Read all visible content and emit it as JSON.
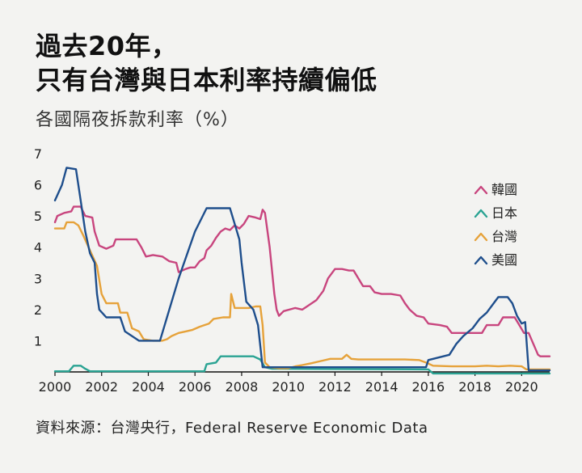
{
  "header": {
    "title_line1": "過去20年，",
    "title_line2": "只有台灣與日本利率持續偏低",
    "subtitle": "各國隔夜拆款利率（%）"
  },
  "footer": {
    "source": "資料來源：台灣央行，Federal Reserve Economic Data"
  },
  "chart_data": {
    "type": "line",
    "title": "過去20年，只有台灣與日本利率持續偏低",
    "subtitle": "各國隔夜拆款利率（%）",
    "xlabel": "",
    "ylabel": "",
    "xlim": [
      2000,
      2021.2
    ],
    "ylim": [
      0,
      7
    ],
    "x_ticks": [
      "2000",
      "2002",
      "2004",
      "2006",
      "2008",
      "2010",
      "2012",
      "2014",
      "2016",
      "2018",
      "2020"
    ],
    "y_ticks": [
      "1",
      "2",
      "3",
      "4",
      "5",
      "6",
      "7"
    ],
    "grid": false,
    "legend_position": "right",
    "series": [
      {
        "name": "韓國",
        "color": "#c8457e",
        "points": [
          [
            2000,
            4.8
          ],
          [
            2000.1,
            5.0
          ],
          [
            2000.4,
            5.1
          ],
          [
            2000.7,
            5.15
          ],
          [
            2000.8,
            5.3
          ],
          [
            2001.1,
            5.3
          ],
          [
            2001.3,
            5.0
          ],
          [
            2001.6,
            4.95
          ],
          [
            2001.7,
            4.5
          ],
          [
            2001.9,
            4.05
          ],
          [
            2002.2,
            3.95
          ],
          [
            2002.5,
            4.05
          ],
          [
            2002.6,
            4.25
          ],
          [
            2003.5,
            4.25
          ],
          [
            2003.7,
            4.0
          ],
          [
            2003.9,
            3.7
          ],
          [
            2004.2,
            3.75
          ],
          [
            2004.6,
            3.7
          ],
          [
            2004.9,
            3.55
          ],
          [
            2005.2,
            3.5
          ],
          [
            2005.3,
            3.2
          ],
          [
            2005.6,
            3.3
          ],
          [
            2005.8,
            3.35
          ],
          [
            2006.0,
            3.35
          ],
          [
            2006.2,
            3.55
          ],
          [
            2006.4,
            3.65
          ],
          [
            2006.5,
            3.9
          ],
          [
            2006.7,
            4.05
          ],
          [
            2006.9,
            4.3
          ],
          [
            2007.1,
            4.5
          ],
          [
            2007.3,
            4.6
          ],
          [
            2007.5,
            4.55
          ],
          [
            2007.7,
            4.7
          ],
          [
            2007.9,
            4.6
          ],
          [
            2008.1,
            4.75
          ],
          [
            2008.3,
            5.0
          ],
          [
            2008.6,
            4.95
          ],
          [
            2008.8,
            4.9
          ],
          [
            2008.9,
            5.2
          ],
          [
            2009.0,
            5.1
          ],
          [
            2009.2,
            4.0
          ],
          [
            2009.4,
            2.5
          ],
          [
            2009.5,
            2.0
          ],
          [
            2009.6,
            1.8
          ],
          [
            2009.8,
            1.95
          ],
          [
            2010.3,
            2.05
          ],
          [
            2010.6,
            2.0
          ],
          [
            2010.8,
            2.1
          ],
          [
            2011.2,
            2.3
          ],
          [
            2011.5,
            2.6
          ],
          [
            2011.7,
            3.0
          ],
          [
            2012.0,
            3.3
          ],
          [
            2012.3,
            3.3
          ],
          [
            2012.6,
            3.25
          ],
          [
            2012.8,
            3.25
          ],
          [
            2013.0,
            3.0
          ],
          [
            2013.2,
            2.75
          ],
          [
            2013.5,
            2.75
          ],
          [
            2013.7,
            2.55
          ],
          [
            2014.0,
            2.5
          ],
          [
            2014.4,
            2.5
          ],
          [
            2014.8,
            2.45
          ],
          [
            2015.0,
            2.2
          ],
          [
            2015.2,
            2.0
          ],
          [
            2015.5,
            1.8
          ],
          [
            2015.8,
            1.75
          ],
          [
            2016.0,
            1.55
          ],
          [
            2016.5,
            1.5
          ],
          [
            2016.8,
            1.45
          ],
          [
            2017.0,
            1.25
          ],
          [
            2017.5,
            1.25
          ],
          [
            2018.0,
            1.25
          ],
          [
            2018.3,
            1.25
          ],
          [
            2018.5,
            1.5
          ],
          [
            2018.8,
            1.5
          ],
          [
            2019.0,
            1.5
          ],
          [
            2019.2,
            1.75
          ],
          [
            2019.5,
            1.75
          ],
          [
            2019.7,
            1.75
          ],
          [
            2019.9,
            1.5
          ],
          [
            2020.1,
            1.25
          ],
          [
            2020.3,
            1.25
          ],
          [
            2020.5,
            0.9
          ],
          [
            2020.7,
            0.55
          ],
          [
            2020.8,
            0.5
          ],
          [
            2021.2,
            0.5
          ]
        ]
      },
      {
        "name": "日本",
        "color": "#2aa393",
        "points": [
          [
            2000,
            0.02
          ],
          [
            2000.6,
            0.02
          ],
          [
            2000.8,
            0.2
          ],
          [
            2001.1,
            0.2
          ],
          [
            2001.3,
            0.1
          ],
          [
            2001.5,
            0.02
          ],
          [
            2006.4,
            0.02
          ],
          [
            2006.5,
            0.25
          ],
          [
            2006.9,
            0.3
          ],
          [
            2007.1,
            0.5
          ],
          [
            2008.5,
            0.5
          ],
          [
            2008.8,
            0.4
          ],
          [
            2009.0,
            0.15
          ],
          [
            2009.3,
            0.1
          ],
          [
            2016.0,
            0.08
          ],
          [
            2016.2,
            -0.05
          ],
          [
            2021.2,
            -0.05
          ]
        ]
      },
      {
        "name": "台灣",
        "color": "#e6a23a",
        "points": [
          [
            2000,
            4.6
          ],
          [
            2000.4,
            4.6
          ],
          [
            2000.5,
            4.8
          ],
          [
            2000.8,
            4.8
          ],
          [
            2001.0,
            4.7
          ],
          [
            2001.2,
            4.4
          ],
          [
            2001.5,
            3.9
          ],
          [
            2001.8,
            3.4
          ],
          [
            2002.0,
            2.5
          ],
          [
            2002.2,
            2.2
          ],
          [
            2002.7,
            2.2
          ],
          [
            2002.8,
            1.9
          ],
          [
            2003.1,
            1.9
          ],
          [
            2003.3,
            1.4
          ],
          [
            2003.6,
            1.3
          ],
          [
            2003.8,
            1.05
          ],
          [
            2004.2,
            1.0
          ],
          [
            2004.6,
            1.0
          ],
          [
            2004.8,
            1.05
          ],
          [
            2005.0,
            1.15
          ],
          [
            2005.3,
            1.25
          ],
          [
            2005.6,
            1.3
          ],
          [
            2005.9,
            1.35
          ],
          [
            2006.2,
            1.45
          ],
          [
            2006.6,
            1.55
          ],
          [
            2006.8,
            1.7
          ],
          [
            2007.2,
            1.75
          ],
          [
            2007.5,
            1.75
          ],
          [
            2007.55,
            2.5
          ],
          [
            2007.7,
            2.05
          ],
          [
            2008.0,
            2.05
          ],
          [
            2008.3,
            2.05
          ],
          [
            2008.6,
            2.1
          ],
          [
            2008.8,
            2.1
          ],
          [
            2008.9,
            1.5
          ],
          [
            2009.0,
            0.3
          ],
          [
            2009.2,
            0.15
          ],
          [
            2009.6,
            0.12
          ],
          [
            2010.0,
            0.12
          ],
          [
            2010.3,
            0.18
          ],
          [
            2010.6,
            0.22
          ],
          [
            2011.0,
            0.28
          ],
          [
            2011.4,
            0.35
          ],
          [
            2011.8,
            0.42
          ],
          [
            2012.3,
            0.42
          ],
          [
            2012.5,
            0.55
          ],
          [
            2012.7,
            0.42
          ],
          [
            2013.0,
            0.4
          ],
          [
            2014.0,
            0.4
          ],
          [
            2015.0,
            0.4
          ],
          [
            2015.6,
            0.38
          ],
          [
            2015.9,
            0.3
          ],
          [
            2016.2,
            0.2
          ],
          [
            2017.0,
            0.18
          ],
          [
            2018.0,
            0.18
          ],
          [
            2018.5,
            0.2
          ],
          [
            2019.0,
            0.18
          ],
          [
            2019.5,
            0.2
          ],
          [
            2020.0,
            0.18
          ],
          [
            2020.2,
            0.08
          ],
          [
            2020.4,
            0.08
          ],
          [
            2021.2,
            0.08
          ]
        ]
      },
      {
        "name": "美國",
        "color": "#1e4e8c",
        "points": [
          [
            2000,
            5.5
          ],
          [
            2000.3,
            6.0
          ],
          [
            2000.5,
            6.55
          ],
          [
            2000.9,
            6.5
          ],
          [
            2001.0,
            6.0
          ],
          [
            2001.1,
            5.5
          ],
          [
            2001.3,
            4.5
          ],
          [
            2001.5,
            3.8
          ],
          [
            2001.7,
            3.5
          ],
          [
            2001.8,
            2.5
          ],
          [
            2001.9,
            2.0
          ],
          [
            2002.2,
            1.75
          ],
          [
            2002.8,
            1.75
          ],
          [
            2003.0,
            1.3
          ],
          [
            2003.6,
            1.0
          ],
          [
            2004.5,
            1.0
          ],
          [
            2004.6,
            1.25
          ],
          [
            2005.3,
            3.0
          ],
          [
            2006.0,
            4.5
          ],
          [
            2006.5,
            5.25
          ],
          [
            2007.5,
            5.25
          ],
          [
            2007.7,
            4.75
          ],
          [
            2007.9,
            4.25
          ],
          [
            2008.0,
            3.5
          ],
          [
            2008.2,
            2.25
          ],
          [
            2008.5,
            2.0
          ],
          [
            2008.7,
            1.5
          ],
          [
            2008.9,
            0.15
          ],
          [
            2009.2,
            0.15
          ],
          [
            2015.9,
            0.15
          ],
          [
            2016.0,
            0.38
          ],
          [
            2016.9,
            0.55
          ],
          [
            2017.2,
            0.9
          ],
          [
            2017.5,
            1.15
          ],
          [
            2017.9,
            1.4
          ],
          [
            2018.2,
            1.7
          ],
          [
            2018.5,
            1.9
          ],
          [
            2018.8,
            2.2
          ],
          [
            2019.0,
            2.4
          ],
          [
            2019.4,
            2.4
          ],
          [
            2019.6,
            2.2
          ],
          [
            2019.8,
            1.8
          ],
          [
            2020.0,
            1.55
          ],
          [
            2020.15,
            1.6
          ],
          [
            2020.3,
            0.05
          ],
          [
            2021.2,
            0.05
          ]
        ]
      }
    ]
  }
}
